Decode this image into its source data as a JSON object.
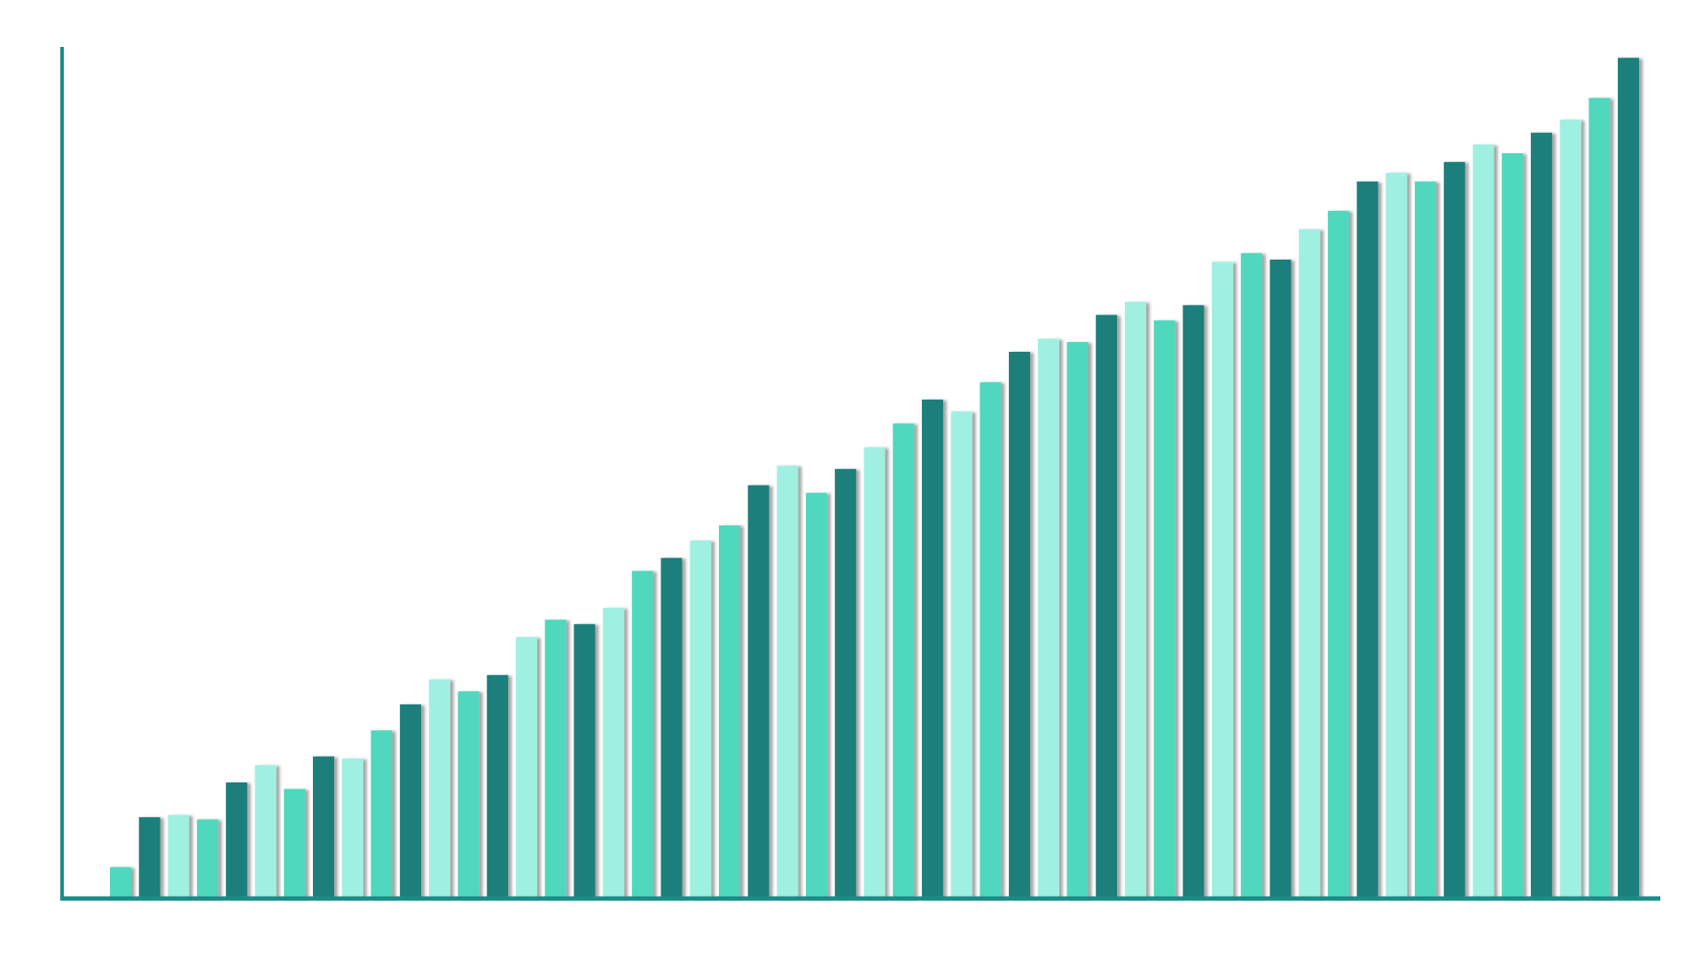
{
  "chart_data": {
    "type": "bar",
    "values": [
      29,
      75,
      77,
      73,
      107,
      123,
      101,
      131,
      129,
      155,
      179,
      202,
      191,
      206,
      241,
      257,
      253,
      268,
      302,
      314,
      330,
      344,
      381,
      399,
      374,
      396,
      416,
      438,
      460,
      449,
      476,
      504,
      516,
      513,
      538,
      550,
      533,
      547,
      587,
      595,
      589,
      617,
      634,
      661,
      669,
      661,
      679,
      695,
      687,
      706,
      718,
      738,
      775
    ],
    "palette": [
      "#4fd8bd",
      "#1a7f7b",
      "#9ff0e0"
    ],
    "axis_color": "#1a8c88",
    "ylim": [
      0,
      785
    ]
  }
}
